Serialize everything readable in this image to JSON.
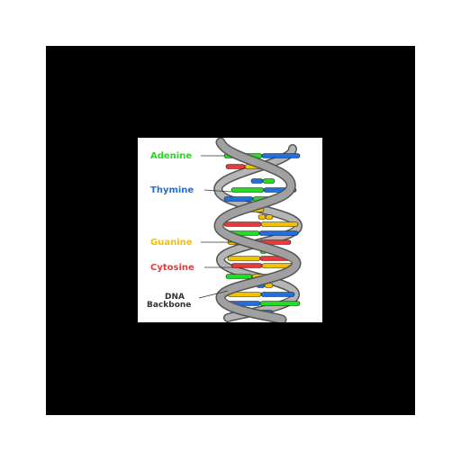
{
  "diagram": {
    "labels": {
      "adenine": "Adenine",
      "thymine": "Thymine",
      "guanine": "Guanine",
      "cytosine": "Cytosine",
      "backbone_line1": "DNA",
      "backbone_line2": "Backbone"
    },
    "colors": {
      "frame": "#000000",
      "background": "#ffffff",
      "adenine": "#22dd22",
      "thymine": "#1f6fe0",
      "guanine": "#f2c200",
      "cytosine": "#e83a3a",
      "backbone": "#9a9a9a",
      "backbone_edge": "#555555",
      "backbone_text": "#333333"
    }
  }
}
